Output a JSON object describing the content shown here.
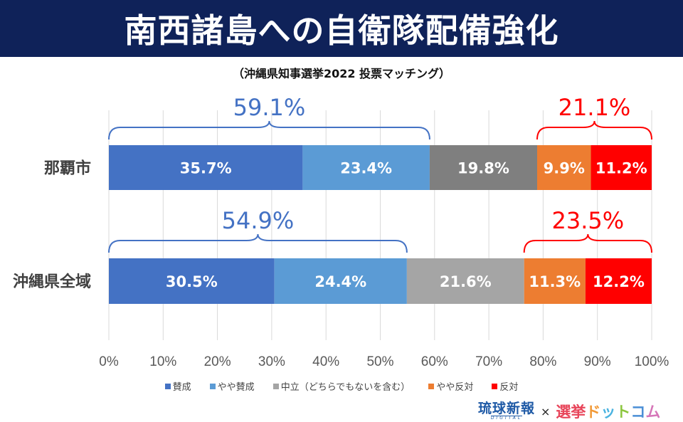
{
  "header": {
    "title": "南西諸島への自衛隊配備強化",
    "subtitle": "（沖縄県知事選挙2022 投票マッチング）"
  },
  "chart_data": {
    "type": "bar",
    "orientation": "horizontal-stacked-100",
    "title": "南西諸島への自衛隊配備強化",
    "subtitle": "（沖縄県知事選挙2022 投票マッチング）",
    "categories": [
      "那覇市",
      "沖縄県全域"
    ],
    "series": [
      {
        "name": "賛成",
        "color": "#4472c4",
        "values": [
          35.7,
          30.5
        ],
        "labels": [
          "35.7%",
          "30.5%"
        ]
      },
      {
        "name": "やや賛成",
        "color": "#5b9bd5",
        "values": [
          23.4,
          24.4
        ],
        "labels": [
          "23.4%",
          "24.4%"
        ]
      },
      {
        "name": "中立（どちらでもないを含む）",
        "colors": [
          "#7f7f7f",
          "#a5a5a5"
        ],
        "color": "#7f7f7f",
        "values": [
          19.8,
          21.6
        ],
        "labels": [
          "19.8%",
          "21.6%"
        ]
      },
      {
        "name": "やや反対",
        "color": "#ed7d31",
        "values": [
          9.9,
          11.3
        ],
        "labels": [
          "9.9%",
          "11.3%"
        ]
      },
      {
        "name": "反対",
        "color": "#ff0000",
        "values": [
          11.2,
          12.2
        ],
        "labels": [
          "11.2%",
          "12.2%"
        ]
      }
    ],
    "annotations": [
      {
        "category": "那覇市",
        "group": "support",
        "from": 0,
        "to": 59.1,
        "label": "59.1%",
        "color": "#4472c4"
      },
      {
        "category": "那覇市",
        "group": "oppose",
        "from": 78.9,
        "to": 100,
        "label": "21.1%",
        "color": "#ff0000"
      },
      {
        "category": "沖縄県全域",
        "group": "support",
        "from": 0,
        "to": 54.9,
        "label": "54.9%",
        "color": "#4472c4"
      },
      {
        "category": "沖縄県全域",
        "group": "oppose",
        "from": 76.5,
        "to": 100,
        "label": "23.5%",
        "color": "#ff0000"
      }
    ],
    "xlim": [
      0,
      100
    ],
    "xticks": [
      "0%",
      "10%",
      "20%",
      "30%",
      "40%",
      "50%",
      "60%",
      "70%",
      "80%",
      "90%",
      "100%"
    ],
    "grid": true,
    "legend_position": "bottom"
  },
  "legend": [
    {
      "label": "賛成",
      "color": "#4472c4"
    },
    {
      "label": "やや賛成",
      "color": "#5b9bd5"
    },
    {
      "label": "中立（どちらでもないを含む）",
      "color": "#a5a5a5"
    },
    {
      "label": "やや反対",
      "color": "#ed7d31"
    },
    {
      "label": "反対",
      "color": "#ff0000"
    }
  ],
  "footer": {
    "logo1_main": "琉球新報",
    "logo1_sub": "DIGITAL",
    "times": "×",
    "logo2": [
      "選",
      "挙",
      "ド",
      "ッ",
      "ト",
      "コ",
      "ム"
    ]
  }
}
